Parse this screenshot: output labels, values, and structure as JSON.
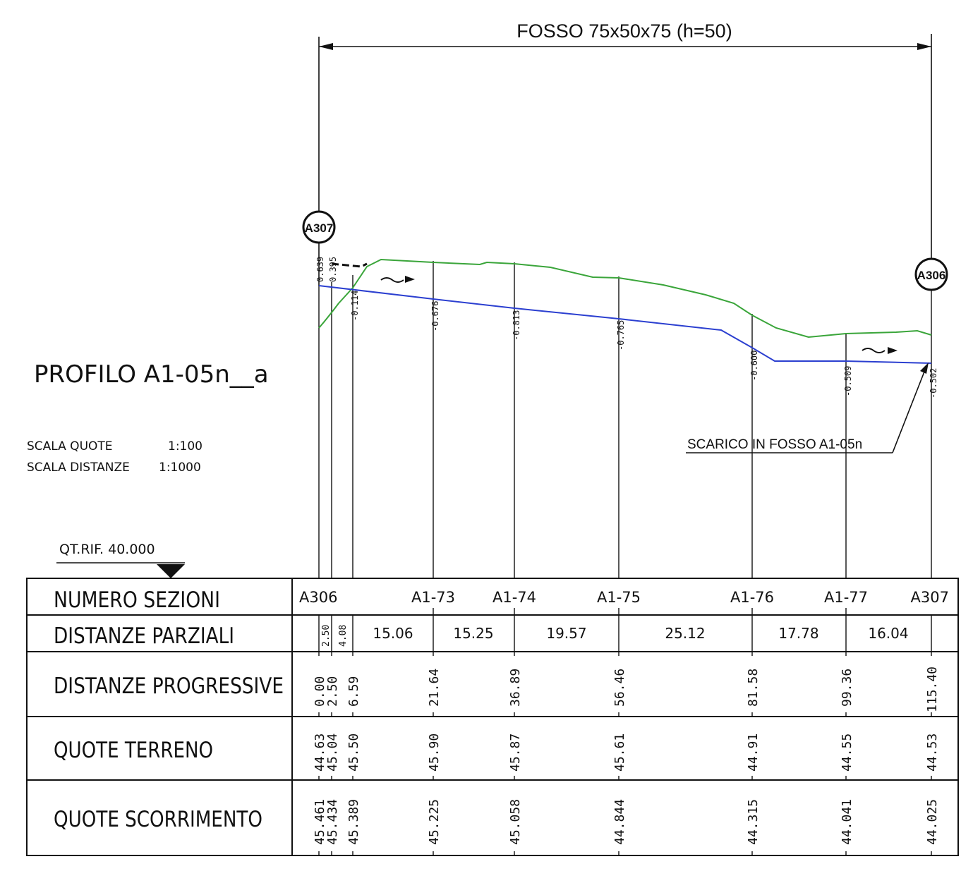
{
  "title": "PROFILO A1-05n__a",
  "scale": {
    "quote_label": "SCALA QUOTE",
    "quote_value": "1:100",
    "distanze_label": "SCALA DISTANZE",
    "distanze_value": "1:1000"
  },
  "ref_level": "QT.RIF. 40.000",
  "ditch_label": "FOSSO 75x50x75 (h=50)",
  "discharge_label": "SCARICO IN FOSSO A1-05n",
  "node_start": "A307",
  "node_end": "A306",
  "depths": [
    "0.639",
    "0.395",
    "-0.114",
    "-0.676",
    "-0.813",
    "-0.765",
    "-0.600",
    "-0.509",
    "-0.502"
  ],
  "table": {
    "row_labels": {
      "sections": "NUMERO SEZIONI",
      "partial": "DISTANZE PARZIALI",
      "progressive": "DISTANZE PROGRESSIVE",
      "terrain": "QUOTE TERRENO",
      "flow": "QUOTE SCORRIMENTO"
    },
    "section_names": [
      "A306",
      "A1-73",
      "A1-74",
      "A1-75",
      "A1-76",
      "A1-77",
      "A307"
    ],
    "partial": [
      "2.50",
      "4.08",
      "15.06",
      "15.25",
      "19.57",
      "25.12",
      "17.78",
      "16.04"
    ],
    "progressive": [
      "0.00",
      "2.50",
      "6.59",
      "21.64",
      "36.89",
      "56.46",
      "81.58",
      "99.36",
      "115.40"
    ],
    "terrain": [
      "44.63",
      "45.04",
      "45.50",
      "45.90",
      "45.87",
      "45.61",
      "44.91",
      "44.55",
      "44.53"
    ],
    "flow": [
      "45.461",
      "45.434",
      "45.389",
      "45.225",
      "45.058",
      "44.844",
      "44.315",
      "44.041",
      "44.025"
    ]
  },
  "colors": {
    "terrain_line": "#3aa53a",
    "flow_line": "#2b3fd0",
    "ink": "#111111"
  }
}
